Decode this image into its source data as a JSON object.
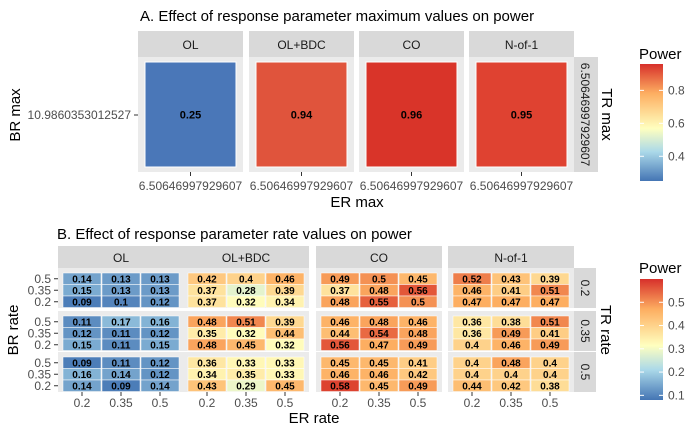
{
  "chart_data": [
    {
      "type": "heatmap",
      "title": "A. Effect of response parameter maximum values on power",
      "xlabel": "ER max",
      "ylabel": "BR max",
      "facet_row_label": "TR max",
      "facets": [
        "OL",
        "OL+BDC",
        "CO",
        "N-of-1"
      ],
      "x_tick": "6.50646997929607",
      "y_tick": "10.9860353012527",
      "row_strip": "6.50646997929607",
      "values": [
        0.25,
        0.94,
        0.96,
        0.95
      ],
      "colors": [
        "#4a77b8",
        "#e0543c",
        "#d93429",
        "#df4231"
      ],
      "legend": {
        "title": "Power",
        "ticks": [
          "0.8",
          "0.6",
          "0.4"
        ],
        "tick_values": [
          0.8,
          0.6,
          0.4
        ],
        "range": [
          0.25,
          0.96
        ]
      }
    },
    {
      "type": "heatmap",
      "title": "B. Effect of response parameter rate values on power",
      "xlabel": "ER rate",
      "ylabel": "BR rate",
      "facet_row_label": "TR rate",
      "facets": [
        "OL",
        "OL+BDC",
        "CO",
        "N-of-1"
      ],
      "tr_rates": [
        "0.2",
        "0.35",
        "0.5"
      ],
      "x_ticks": [
        "0.2",
        "0.35",
        "0.5"
      ],
      "y_ticks": [
        "0.5",
        "0.35",
        "0.2"
      ],
      "grid": {
        "OL": [
          [
            [
              "0.14",
              "0.13",
              "0.13"
            ],
            [
              "0.15",
              "0.13",
              "0.13"
            ],
            [
              "0.09",
              "0.1",
              "0.12"
            ]
          ],
          [
            [
              "0.11",
              "0.17",
              "0.16"
            ],
            [
              "0.12",
              "0.11",
              "0.12"
            ],
            [
              "0.15",
              "0.11",
              "0.15"
            ]
          ],
          [
            [
              "0.09",
              "0.11",
              "0.12"
            ],
            [
              "0.16",
              "0.14",
              "0.12"
            ],
            [
              "0.14",
              "0.09",
              "0.14"
            ]
          ]
        ],
        "OL+BDC": [
          [
            [
              "0.42",
              "0.4",
              "0.46"
            ],
            [
              "0.37",
              "0.28",
              "0.39"
            ],
            [
              "0.37",
              "0.32",
              "0.34"
            ]
          ],
          [
            [
              "0.48",
              "0.51",
              "0.39"
            ],
            [
              "0.35",
              "0.32",
              "0.44"
            ],
            [
              "0.48",
              "0.45",
              "0.32"
            ]
          ],
          [
            [
              "0.36",
              "0.33",
              "0.33"
            ],
            [
              "0.34",
              "0.35",
              "0.33"
            ],
            [
              "0.43",
              "0.29",
              "0.45"
            ]
          ]
        ],
        "CO": [
          [
            [
              "0.49",
              "0.5",
              "0.45"
            ],
            [
              "0.37",
              "0.48",
              "0.56"
            ],
            [
              "0.48",
              "0.55",
              "0.5"
            ]
          ],
          [
            [
              "0.46",
              "0.48",
              "0.46"
            ],
            [
              "0.44",
              "0.54",
              "0.48"
            ],
            [
              "0.56",
              "0.47",
              "0.49"
            ]
          ],
          [
            [
              "0.45",
              "0.45",
              "0.41"
            ],
            [
              "0.46",
              "0.46",
              "0.42"
            ],
            [
              "0.58",
              "0.45",
              "0.49"
            ]
          ]
        ],
        "N-of-1": [
          [
            [
              "0.52",
              "0.43",
              "0.39"
            ],
            [
              "0.46",
              "0.41",
              "0.51"
            ],
            [
              "0.47",
              "0.47",
              "0.47"
            ]
          ],
          [
            [
              "0.36",
              "0.38",
              "0.51"
            ],
            [
              "0.36",
              "0.49",
              "0.41"
            ],
            [
              "0.4",
              "0.46",
              "0.49"
            ]
          ],
          [
            [
              "0.4",
              "0.48",
              "0.4"
            ],
            [
              "0.4",
              "0.4",
              "0.4"
            ],
            [
              "0.44",
              "0.42",
              "0.38"
            ]
          ]
        ]
      },
      "legend": {
        "title": "Power",
        "ticks": [
          "0.5",
          "0.4",
          "0.3",
          "0.2",
          "0.1"
        ],
        "tick_values": [
          0.5,
          0.4,
          0.3,
          0.2,
          0.1
        ],
        "range": [
          0.08,
          0.6
        ]
      }
    }
  ]
}
